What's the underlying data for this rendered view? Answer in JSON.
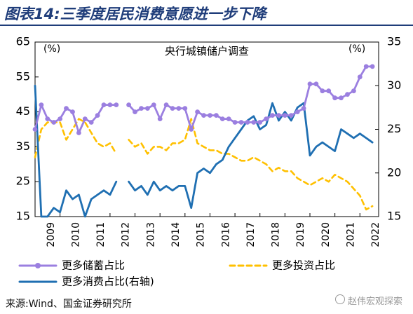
{
  "title": "图表14:三季度居民消费意愿进一步下降",
  "chart_data": {
    "type": "line",
    "title": "央行城镇储户调查",
    "y_left": {
      "unit_label": "(%)",
      "ylim": [
        15,
        65
      ],
      "ticks": [
        "65",
        "55",
        "45",
        "35",
        "25",
        "15"
      ]
    },
    "y_right": {
      "unit_label": "(%)",
      "ylim": [
        15,
        35
      ],
      "ticks": [
        "35",
        "30",
        "25",
        "20",
        "15"
      ]
    },
    "x": {
      "xlim": [
        2009,
        2022.75
      ],
      "tick_labels": [
        "2009",
        "2010",
        "2011",
        "2012",
        "2013",
        "2014",
        "2015",
        "2016",
        "2017",
        "2018",
        "2019",
        "2020",
        "2021",
        "2022"
      ]
    },
    "legend_position": "bottom",
    "series": [
      {
        "name": "更多储蓄占比",
        "axis": "left",
        "color": "#9b7fe0",
        "style": "solid-marker",
        "segments": [
          [
            [
              2009,
              40
            ],
            [
              2009.25,
              47
            ],
            [
              2009.5,
              43
            ],
            [
              2009.75,
              42
            ],
            [
              2010,
              43
            ],
            [
              2010.25,
              46
            ],
            [
              2010.5,
              45
            ],
            [
              2010.75,
              39
            ],
            [
              2011,
              43
            ],
            [
              2011.25,
              42
            ],
            [
              2011.5,
              44
            ],
            [
              2011.75,
              47
            ],
            [
              2012,
              47
            ],
            [
              2012.25,
              47
            ]
          ],
          [
            [
              2012.75,
              47
            ],
            [
              2013,
              45
            ],
            [
              2013.25,
              46
            ],
            [
              2013.5,
              46
            ],
            [
              2013.75,
              47
            ],
            [
              2014,
              43
            ],
            [
              2014.25,
              47
            ],
            [
              2014.5,
              46
            ],
            [
              2014.75,
              46
            ],
            [
              2015,
              46
            ],
            [
              2015.25,
              40
            ],
            [
              2015.5,
              45
            ],
            [
              2015.75,
              44
            ],
            [
              2016,
              44
            ],
            [
              2016.25,
              44
            ],
            [
              2016.5,
              43
            ],
            [
              2016.75,
              43
            ],
            [
              2017,
              42
            ],
            [
              2017.25,
              42
            ],
            [
              2017.5,
              42
            ],
            [
              2017.75,
              42
            ],
            [
              2018,
              42
            ],
            [
              2018.25,
              43
            ],
            [
              2018.5,
              44
            ],
            [
              2018.75,
              44
            ],
            [
              2019,
              44
            ],
            [
              2019.25,
              44
            ],
            [
              2019.5,
              45
            ],
            [
              2019.75,
              46
            ],
            [
              2020,
              53
            ],
            [
              2020.25,
              53
            ],
            [
              2020.5,
              51
            ],
            [
              2020.75,
              51
            ],
            [
              2021,
              49
            ],
            [
              2021.25,
              49
            ],
            [
              2021.5,
              50
            ],
            [
              2021.75,
              51
            ],
            [
              2022,
              55
            ],
            [
              2022.25,
              58
            ],
            [
              2022.5,
              58
            ]
          ]
        ]
      },
      {
        "name": "更多投资占比",
        "axis": "left",
        "color": "#ffc000",
        "style": "dashed",
        "segments": [
          [
            [
              2009,
              32
            ],
            [
              2009.25,
              40
            ],
            [
              2009.5,
              42
            ],
            [
              2009.75,
              42
            ],
            [
              2010,
              42
            ],
            [
              2010.25,
              37
            ],
            [
              2010.5,
              40
            ],
            [
              2010.75,
              43
            ],
            [
              2011,
              42
            ],
            [
              2011.25,
              39
            ],
            [
              2011.5,
              36
            ],
            [
              2011.75,
              35
            ],
            [
              2012,
              36
            ],
            [
              2012.25,
              33
            ]
          ],
          [
            [
              2012.75,
              37
            ],
            [
              2013,
              35
            ],
            [
              2013.25,
              36
            ],
            [
              2013.5,
              33
            ],
            [
              2013.75,
              35
            ],
            [
              2014,
              35
            ],
            [
              2014.25,
              34
            ],
            [
              2014.5,
              36
            ],
            [
              2014.75,
              36
            ],
            [
              2015,
              37
            ],
            [
              2015.25,
              43
            ],
            [
              2015.5,
              36
            ],
            [
              2015.75,
              35
            ],
            [
              2016,
              34
            ],
            [
              2016.25,
              34
            ],
            [
              2016.5,
              33
            ],
            [
              2016.75,
              33
            ],
            [
              2017,
              32
            ],
            [
              2017.25,
              31
            ],
            [
              2017.5,
              31
            ],
            [
              2017.75,
              32
            ],
            [
              2018,
              31
            ],
            [
              2018.25,
              30
            ],
            [
              2018.5,
              28
            ],
            [
              2018.75,
              29
            ],
            [
              2019,
              28
            ],
            [
              2019.25,
              28
            ],
            [
              2019.5,
              26
            ],
            [
              2019.75,
              25
            ],
            [
              2020,
              24
            ],
            [
              2020.25,
              25
            ],
            [
              2020.5,
              26
            ],
            [
              2020.75,
              25
            ],
            [
              2021,
              27
            ],
            [
              2021.25,
              26
            ],
            [
              2021.5,
              25
            ],
            [
              2021.75,
              23
            ],
            [
              2022,
              21
            ],
            [
              2022.25,
              17
            ],
            [
              2022.5,
              18
            ]
          ]
        ]
      },
      {
        "name": "更多消费占比(右轴)",
        "axis": "right",
        "color": "#1f6fb2",
        "style": "solid",
        "segments": [
          [
            [
              2009,
              30
            ],
            [
              2009.25,
              15
            ],
            [
              2009.5,
              15
            ],
            [
              2009.75,
              16
            ],
            [
              2010,
              15.5
            ],
            [
              2010.25,
              18
            ],
            [
              2010.5,
              17
            ],
            [
              2010.75,
              17.5
            ],
            [
              2011,
              15
            ],
            [
              2011.25,
              17
            ],
            [
              2011.5,
              17.5
            ],
            [
              2011.75,
              18
            ],
            [
              2012,
              17.5
            ],
            [
              2012.25,
              19
            ]
          ],
          [
            [
              2012.75,
              19
            ],
            [
              2013,
              18
            ],
            [
              2013.25,
              18.5
            ],
            [
              2013.5,
              17.5
            ],
            [
              2013.75,
              19
            ],
            [
              2014,
              18
            ],
            [
              2014.25,
              18.5
            ],
            [
              2014.5,
              18
            ],
            [
              2014.75,
              18.5
            ],
            [
              2015,
              18.5
            ],
            [
              2015.25,
              16
            ],
            [
              2015.5,
              20
            ],
            [
              2015.75,
              20.5
            ],
            [
              2016,
              20
            ],
            [
              2016.25,
              21
            ],
            [
              2016.5,
              21.5
            ],
            [
              2016.75,
              23
            ],
            [
              2017,
              24
            ],
            [
              2017.25,
              25
            ],
            [
              2017.5,
              26
            ],
            [
              2017.75,
              26.5
            ],
            [
              2018,
              25
            ],
            [
              2018.25,
              25.5
            ],
            [
              2018.5,
              28
            ],
            [
              2018.75,
              26
            ],
            [
              2019,
              27
            ],
            [
              2019.25,
              26
            ],
            [
              2019.5,
              27.5
            ],
            [
              2019.75,
              28
            ],
            [
              2020,
              22
            ],
            [
              2020.25,
              23
            ],
            [
              2020.5,
              23.5
            ],
            [
              2020.75,
              23
            ],
            [
              2021,
              22.5
            ],
            [
              2021.25,
              25
            ],
            [
              2021.5,
              24.5
            ],
            [
              2021.75,
              24
            ],
            [
              2022,
              24.5
            ],
            [
              2022.25,
              24
            ],
            [
              2022.5,
              23.5
            ]
          ]
        ]
      }
    ]
  },
  "source": "来源:Wind、国金证券研究所",
  "watermark": "赵伟宏观探索"
}
